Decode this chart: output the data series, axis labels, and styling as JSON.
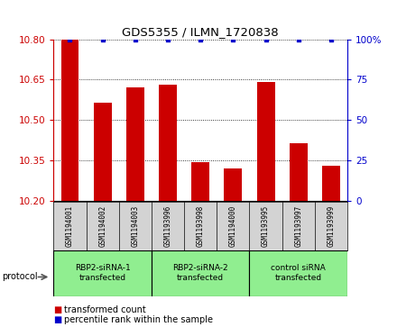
{
  "title": "GDS5355 / ILMN_1720838",
  "samples": [
    "GSM1194001",
    "GSM1194002",
    "GSM1194003",
    "GSM1193996",
    "GSM1193998",
    "GSM1194000",
    "GSM1193995",
    "GSM1193997",
    "GSM1193999"
  ],
  "bar_values": [
    10.8,
    10.565,
    10.62,
    10.63,
    10.345,
    10.32,
    10.64,
    10.415,
    10.33
  ],
  "percentile_values": [
    100,
    100,
    100,
    100,
    100,
    100,
    100,
    100,
    100
  ],
  "bar_color": "#cc0000",
  "dot_color": "#0000cc",
  "ylim_left": [
    10.2,
    10.8
  ],
  "ylim_right": [
    0,
    100
  ],
  "yticks_left": [
    10.2,
    10.35,
    10.5,
    10.65,
    10.8
  ],
  "yticks_right": [
    0,
    25,
    50,
    75,
    100
  ],
  "groups": [
    {
      "label": "RBP2-siRNA-1\ntransfected",
      "indices": [
        0,
        1,
        2
      ],
      "color": "#90ee90"
    },
    {
      "label": "RBP2-siRNA-2\ntransfected",
      "indices": [
        3,
        4,
        5
      ],
      "color": "#90ee90"
    },
    {
      "label": "control siRNA\ntransfected",
      "indices": [
        6,
        7,
        8
      ],
      "color": "#90ee90"
    }
  ],
  "protocol_label": "protocol",
  "legend_bar_label": "transformed count",
  "legend_dot_label": "percentile rank within the sample",
  "sample_bg_color": "#d3d3d3",
  "plot_bg": "#ffffff",
  "bar_width": 0.55
}
